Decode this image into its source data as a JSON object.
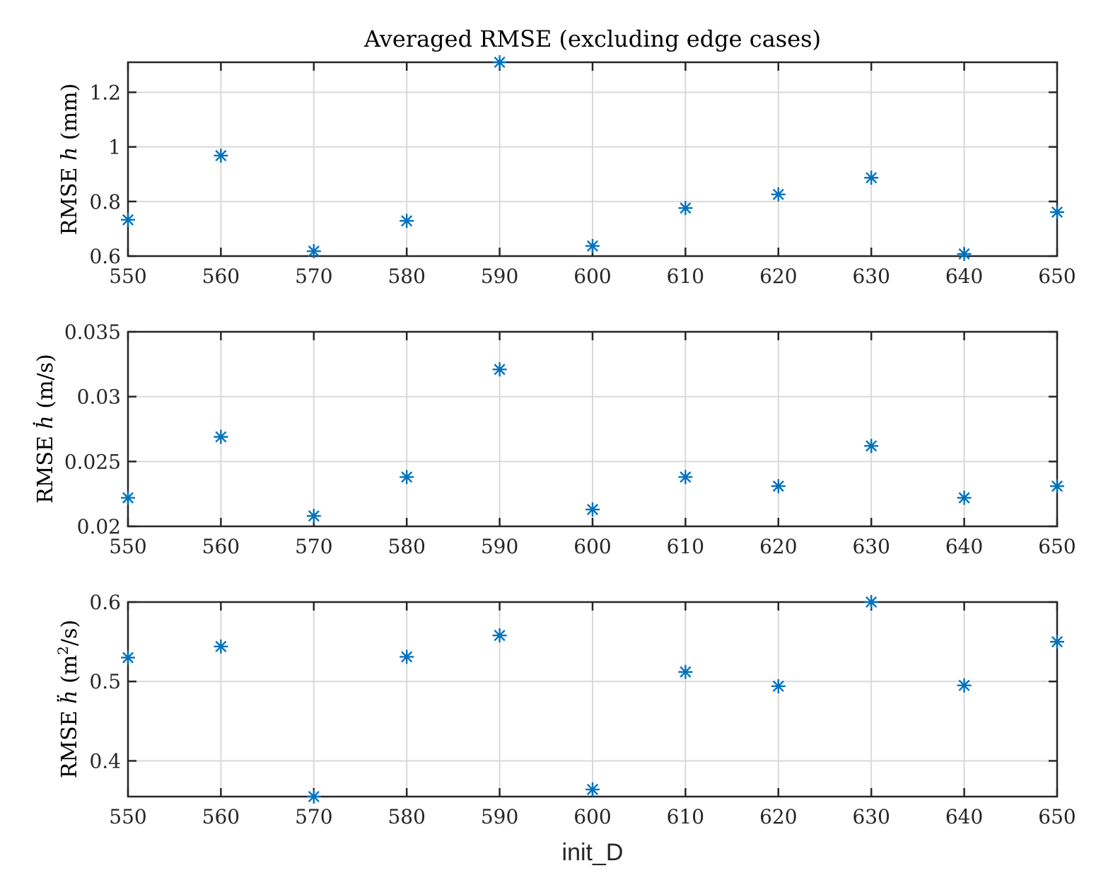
{
  "figure_xlabel": "init_D",
  "chart_data": [
    {
      "type": "scatter",
      "title": "Averaged RMSE (excluding edge cases)",
      "ylabel": {
        "prefix": "RMSE ",
        "symbol": "h",
        "unit": " (mm)"
      },
      "x": [
        550,
        560,
        570,
        580,
        590,
        600,
        610,
        620,
        630,
        640,
        650
      ],
      "y": [
        0.733,
        0.968,
        0.618,
        0.729,
        1.31,
        0.637,
        0.776,
        0.826,
        0.887,
        0.608,
        0.761
      ],
      "xlim": [
        550,
        650
      ],
      "ylim": [
        0.6,
        1.31
      ],
      "xticks": [
        "550",
        "560",
        "570",
        "580",
        "590",
        "600",
        "610",
        "620",
        "630",
        "640",
        "650"
      ],
      "yticks": [
        0.6,
        0.8,
        1.0,
        1.2
      ],
      "ytick_labels": [
        "0.6",
        "0.8",
        "1",
        "1.2"
      ],
      "marker": "asterisk",
      "color": "#0072bd",
      "grid": true
    },
    {
      "type": "scatter",
      "ylabel": {
        "prefix": "RMSE ",
        "symbol": "ḣ",
        "unit": " (m/s)"
      },
      "x": [
        550,
        560,
        570,
        580,
        590,
        600,
        610,
        620,
        630,
        640,
        650
      ],
      "y": [
        0.0222,
        0.0269,
        0.0208,
        0.0238,
        0.0321,
        0.0213,
        0.0238,
        0.0231,
        0.0262,
        0.0222,
        0.0231
      ],
      "xlim": [
        550,
        650
      ],
      "ylim": [
        0.02,
        0.035
      ],
      "xticks": [
        "550",
        "560",
        "570",
        "580",
        "590",
        "600",
        "610",
        "620",
        "630",
        "640",
        "650"
      ],
      "yticks": [
        0.02,
        0.025,
        0.03,
        0.035
      ],
      "ytick_labels": [
        "0.02",
        "0.025",
        "0.03",
        "0.035"
      ],
      "marker": "asterisk",
      "color": "#0072bd",
      "grid": true
    },
    {
      "type": "scatter",
      "ylabel": {
        "prefix": "RMSE ",
        "symbol": "ḧ",
        "unit_pre": " (m",
        "unit_sup": "2",
        "unit_post": "/s)"
      },
      "x": [
        550,
        560,
        570,
        580,
        590,
        600,
        610,
        620,
        630,
        640,
        650
      ],
      "y": [
        0.53,
        0.544,
        0.355,
        0.531,
        0.558,
        0.364,
        0.512,
        0.494,
        0.6,
        0.495,
        0.55
      ],
      "xlim": [
        550,
        650
      ],
      "ylim": [
        0.355,
        0.6
      ],
      "xticks": [
        "550",
        "560",
        "570",
        "580",
        "590",
        "600",
        "610",
        "620",
        "630",
        "640",
        "650"
      ],
      "yticks": [
        0.4,
        0.5,
        0.6
      ],
      "ytick_labels": [
        "0.4",
        "0.5",
        "0.6"
      ],
      "marker": "asterisk",
      "color": "#0072bd",
      "grid": true
    }
  ]
}
